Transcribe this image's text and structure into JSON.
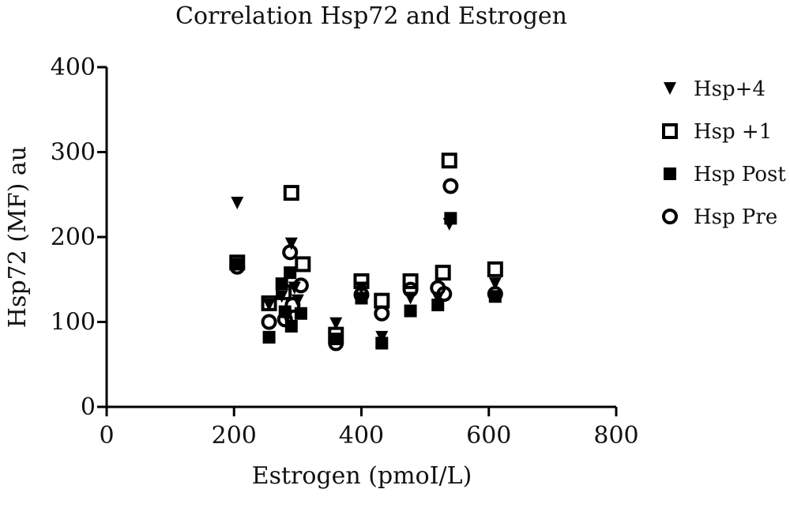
{
  "chart_data": {
    "type": "scatter",
    "title": "Correlation Hsp72 and Estrogen",
    "xlabel": "Estrogen (pmoI/L)",
    "ylabel": "Hsp72 (MF) au",
    "xlim": [
      0,
      800
    ],
    "ylim": [
      0,
      400
    ],
    "xticks": [
      0,
      200,
      400,
      600,
      800
    ],
    "yticks": [
      0,
      100,
      200,
      300,
      400
    ],
    "grid": false,
    "legend_position": "right",
    "series": [
      {
        "name": "Hsp+4",
        "marker": "triangle-down",
        "points": [
          {
            "x": 205,
            "y": 240
          },
          {
            "x": 255,
            "y": 120
          },
          {
            "x": 275,
            "y": 130
          },
          {
            "x": 283,
            "y": 105
          },
          {
            "x": 290,
            "y": 192
          },
          {
            "x": 295,
            "y": 140
          },
          {
            "x": 300,
            "y": 125
          },
          {
            "x": 360,
            "y": 98
          },
          {
            "x": 400,
            "y": 140
          },
          {
            "x": 432,
            "y": 82
          },
          {
            "x": 477,
            "y": 128
          },
          {
            "x": 520,
            "y": 128
          },
          {
            "x": 538,
            "y": 215
          },
          {
            "x": 610,
            "y": 145
          }
        ]
      },
      {
        "name": "Hsp +1",
        "marker": "square-open",
        "points": [
          {
            "x": 205,
            "y": 170
          },
          {
            "x": 255,
            "y": 122
          },
          {
            "x": 290,
            "y": 252
          },
          {
            "x": 308,
            "y": 168
          },
          {
            "x": 278,
            "y": 135
          },
          {
            "x": 360,
            "y": 85
          },
          {
            "x": 400,
            "y": 148
          },
          {
            "x": 432,
            "y": 125
          },
          {
            "x": 477,
            "y": 148
          },
          {
            "x": 528,
            "y": 158
          },
          {
            "x": 538,
            "y": 290
          },
          {
            "x": 610,
            "y": 162
          }
        ]
      },
      {
        "name": "Hsp Post",
        "marker": "square-filled",
        "points": [
          {
            "x": 205,
            "y": 168
          },
          {
            "x": 255,
            "y": 82
          },
          {
            "x": 275,
            "y": 145
          },
          {
            "x": 280,
            "y": 112
          },
          {
            "x": 288,
            "y": 158
          },
          {
            "x": 290,
            "y": 95
          },
          {
            "x": 305,
            "y": 110
          },
          {
            "x": 360,
            "y": 80
          },
          {
            "x": 400,
            "y": 128
          },
          {
            "x": 432,
            "y": 75
          },
          {
            "x": 477,
            "y": 113
          },
          {
            "x": 520,
            "y": 120
          },
          {
            "x": 540,
            "y": 222
          },
          {
            "x": 610,
            "y": 130
          }
        ]
      },
      {
        "name": "Hsp Pre",
        "marker": "circle-open",
        "points": [
          {
            "x": 205,
            "y": 165
          },
          {
            "x": 255,
            "y": 100
          },
          {
            "x": 280,
            "y": 103
          },
          {
            "x": 288,
            "y": 182
          },
          {
            "x": 292,
            "y": 120
          },
          {
            "x": 305,
            "y": 143
          },
          {
            "x": 360,
            "y": 75
          },
          {
            "x": 400,
            "y": 132
          },
          {
            "x": 432,
            "y": 110
          },
          {
            "x": 477,
            "y": 138
          },
          {
            "x": 520,
            "y": 140
          },
          {
            "x": 530,
            "y": 133
          },
          {
            "x": 540,
            "y": 260
          },
          {
            "x": 610,
            "y": 133
          }
        ]
      }
    ]
  }
}
